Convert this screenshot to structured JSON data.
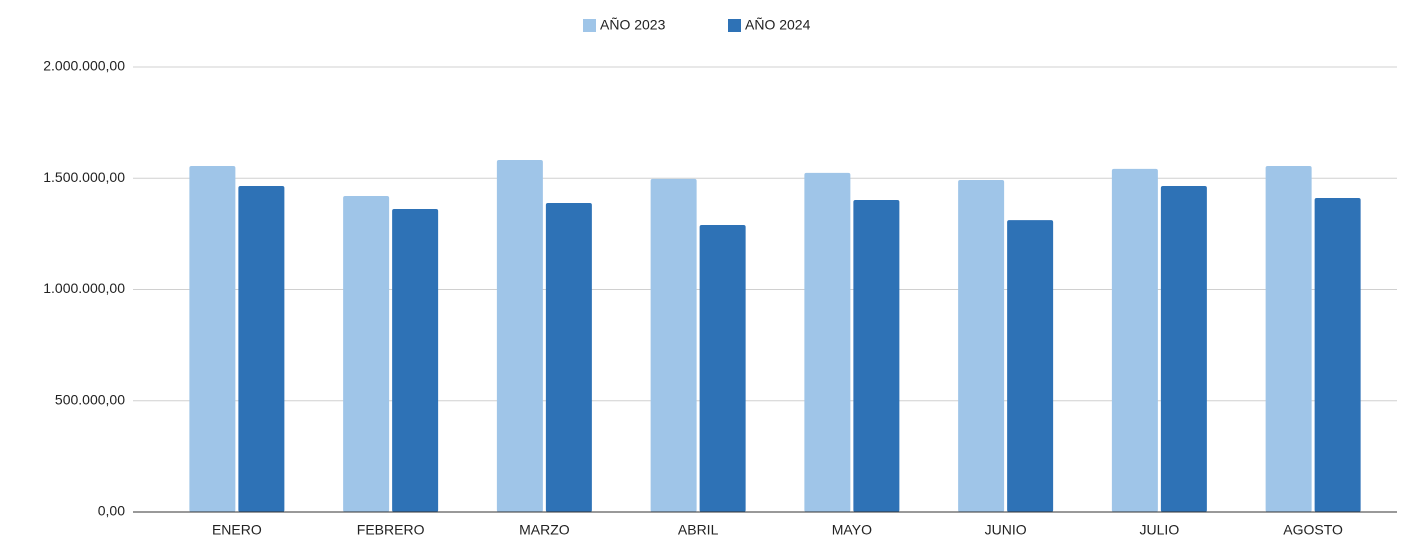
{
  "chart_data": {
    "type": "bar",
    "categories": [
      "ENERO",
      "FEBRERO",
      "MARZO",
      "ABRIL",
      "MAYO",
      "JUNIO",
      "JULIO",
      "AGOSTO"
    ],
    "series": [
      {
        "name": "AÑO 2023",
        "color": "#9fc5e8",
        "values": [
          1555000,
          1420000,
          1582000,
          1497000,
          1524000,
          1492000,
          1542000,
          1555000
        ]
      },
      {
        "name": "AÑO 2024",
        "color": "#2e72b6",
        "values": [
          1465000,
          1362000,
          1389000,
          1290000,
          1402000,
          1312000,
          1465000,
          1411000
        ]
      }
    ],
    "ylim": [
      0,
      2000000
    ],
    "yticks": [
      {
        "value": 0,
        "label": "0,00"
      },
      {
        "value": 500000,
        "label": "500.000,00"
      },
      {
        "value": 1000000,
        "label": "1.000.000,00"
      },
      {
        "value": 1500000,
        "label": "1.500.000,00"
      },
      {
        "value": 2000000,
        "label": "2.000.000,00"
      }
    ],
    "grid": true,
    "legend": "top"
  }
}
